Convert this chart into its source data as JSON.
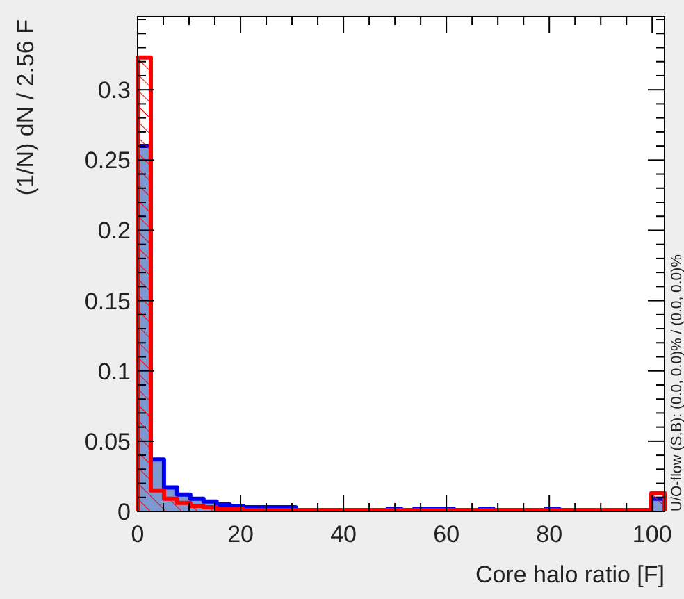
{
  "chart_data": {
    "type": "histogram",
    "xlabel": "Core halo ratio  [F]",
    "ylabel": "(1/N) dN / 2.56 F",
    "annotations": [
      "U/O-flow (S,B): (0.0, 0.0)% / (0.0, 0.0)%"
    ],
    "bins": [
      0,
      2.56,
      5.12,
      7.68,
      10.24,
      12.8,
      15.36,
      17.92,
      20.48,
      23.04,
      25.6,
      28.16,
      30.72,
      33.28,
      35.84,
      38.4,
      40.96,
      43.52,
      46.08,
      48.64,
      51.2,
      53.76,
      56.32,
      58.88,
      61.44,
      64,
      66.56,
      69.12,
      71.68,
      74.24,
      76.8,
      79.36,
      81.92,
      84.48,
      87.04,
      89.6,
      92.16,
      94.72,
      97.28,
      99.84,
      102.4
    ],
    "series": [
      {
        "color": "#0000ee",
        "values": [
          0.26,
          0.037,
          0.017,
          0.012,
          0.009,
          0.007,
          0.005,
          0.004,
          0.003,
          0.003,
          0.003,
          0.003,
          0.001,
          0.001,
          0.001,
          0.001,
          0.001,
          0.001,
          0.001,
          0.002,
          0.001,
          0.002,
          0.002,
          0.002,
          0.001,
          0.001,
          0.002,
          0.001,
          0.001,
          0.001,
          0.001,
          0.002,
          0.001,
          0.001,
          0.001,
          0.001,
          0.001,
          0.001,
          0.001,
          0.009
        ]
      },
      {
        "color": "#ff0000",
        "values": [
          0.323,
          0.015,
          0.009,
          0.006,
          0.004,
          0.003,
          0.002,
          0.002,
          0.001,
          0.001,
          0.001,
          0.001,
          0.001,
          0.001,
          0.001,
          0.001,
          0.001,
          0.001,
          0.001,
          0.001,
          0.001,
          0.001,
          0.001,
          0.001,
          0.001,
          0.001,
          0.001,
          0.001,
          0.001,
          0.001,
          0.001,
          0.001,
          0.001,
          0.001,
          0.001,
          0.001,
          0.001,
          0.001,
          0.001,
          0.013
        ]
      }
    ],
    "xlim": [
      0,
      102.4
    ],
    "ylim": [
      0,
      0.352
    ],
    "xticks": [
      0,
      {
        "value": 5,
        "label": null
      },
      {
        "value": 10,
        "label": null
      },
      {
        "value": 15,
        "label": null
      },
      20,
      {
        "value": 25,
        "label": null
      },
      {
        "value": 30,
        "label": null
      },
      {
        "value": 35,
        "label": null
      },
      40,
      {
        "value": 45,
        "label": null
      },
      {
        "value": 50,
        "label": null
      },
      {
        "value": 55,
        "label": null
      },
      60,
      {
        "value": 65,
        "label": null
      },
      {
        "value": 70,
        "label": null
      },
      {
        "value": 75,
        "label": null
      },
      80,
      {
        "value": 85,
        "label": null
      },
      {
        "value": 90,
        "label": null
      },
      {
        "value": 95,
        "label": null
      },
      100
    ],
    "yticks": [
      0,
      {
        "value": 0.01,
        "label": null
      },
      {
        "value": 0.02,
        "label": null
      },
      {
        "value": 0.03,
        "label": null
      },
      {
        "value": 0.04,
        "label": null
      },
      0.05,
      {
        "value": 0.06,
        "label": null
      },
      {
        "value": 0.07,
        "label": null
      },
      {
        "value": 0.08,
        "label": null
      },
      {
        "value": 0.09,
        "label": null
      },
      0.1,
      {
        "value": 0.11,
        "label": null
      },
      {
        "value": 0.12,
        "label": null
      },
      {
        "value": 0.13,
        "label": null
      },
      {
        "value": 0.14,
        "label": null
      },
      0.15,
      {
        "value": 0.16,
        "label": null
      },
      {
        "value": 0.17,
        "label": null
      },
      {
        "value": 0.18,
        "label": null
      },
      {
        "value": 0.19,
        "label": null
      },
      0.2,
      {
        "value": 0.21,
        "label": null
      },
      {
        "value": 0.22,
        "label": null
      },
      {
        "value": 0.23,
        "label": null
      },
      {
        "value": 0.24,
        "label": null
      },
      0.25,
      {
        "value": 0.26,
        "label": null
      },
      {
        "value": 0.27,
        "label": null
      },
      {
        "value": 0.28,
        "label": null
      },
      {
        "value": 0.29,
        "label": null
      },
      0.3,
      {
        "value": 0.31,
        "label": null
      },
      {
        "value": 0.32,
        "label": null
      },
      {
        "value": 0.33,
        "label": null
      },
      {
        "value": 0.34,
        "label": null
      },
      {
        "value": 0.35,
        "label": null
      }
    ],
    "grid": false
  }
}
